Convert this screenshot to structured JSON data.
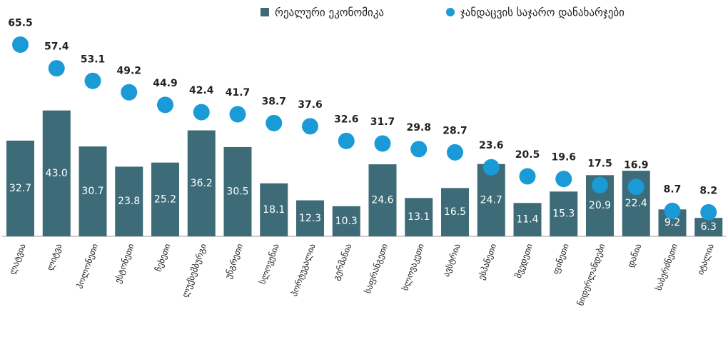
{
  "chart_data": {
    "type": "bar",
    "categories": [
      "ლატვია",
      "ლიტვა",
      "პოლონეთი",
      "ესტონეთი",
      "ჩეხეთი",
      "ლუქსემბურგი",
      "უნგრეთი",
      "სლოვენია",
      "პორტუგალია",
      "გერმანია",
      "საფრანგეთი",
      "სლოვაკეთი",
      "ავსტრია",
      "ესპანეთი",
      "შვედეთი",
      "ფინეთი",
      "ნიდერლანდები",
      "დანია",
      "საბერძნეთი",
      "იტალია"
    ],
    "series": [
      {
        "name": "რეალური ეკონომიკა",
        "type": "bar",
        "color": "#3d6b78",
        "values": [
          32.7,
          43.0,
          30.7,
          23.8,
          25.2,
          36.2,
          30.5,
          18.1,
          12.3,
          10.3,
          24.6,
          13.1,
          16.5,
          24.7,
          11.4,
          15.3,
          20.9,
          22.4,
          9.2,
          6.3
        ],
        "value_labels": [
          "32.7",
          "43.0",
          "30.7",
          "23.8",
          "25.2",
          "36.2",
          "30.5",
          "18.1",
          "12.3",
          "10.3",
          "24.6",
          "13.1",
          "16.5",
          "24.7",
          "11.4",
          "15.3",
          "20.9",
          "22.4",
          "9.2",
          "6.3"
        ]
      },
      {
        "name": "ჯანდაცვის საჯარო დანახარჯები",
        "type": "scatter",
        "color": "#1a9ad6",
        "values": [
          65.5,
          57.4,
          53.1,
          49.2,
          44.9,
          42.4,
          41.7,
          38.7,
          37.6,
          32.6,
          31.7,
          29.8,
          28.7,
          23.6,
          20.5,
          19.6,
          17.5,
          16.9,
          8.7,
          8.2
        ],
        "value_labels": [
          "65.5",
          "57.4",
          "53.1",
          "49.2",
          "44.9",
          "42.4",
          "41.7",
          "38.7",
          "37.6",
          "32.6",
          "31.7",
          "29.8",
          "28.7",
          "23.6",
          "20.5",
          "19.6",
          "17.5",
          "16.9",
          "8.7",
          "8.2"
        ]
      }
    ]
  }
}
